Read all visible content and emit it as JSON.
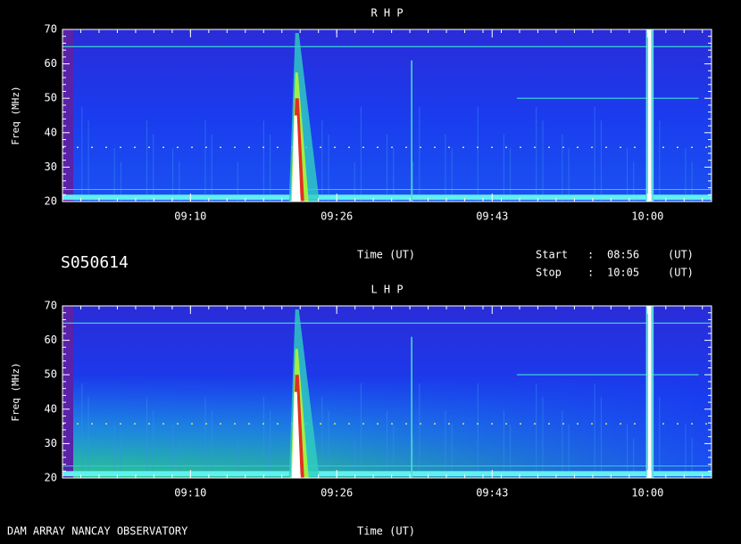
{
  "chart_data": [
    {
      "type": "spectrogram",
      "title": "R H P",
      "x_label": "Time (UT)",
      "y_label": "Freq (MHz)",
      "xlim": [
        536,
        607
      ],
      "xticks": [
        {
          "value": 550,
          "label": "09:10"
        },
        {
          "value": 566,
          "label": "09:26"
        },
        {
          "value": 583,
          "label": "09:43"
        },
        {
          "value": 600,
          "label": "10:00"
        }
      ],
      "ylim": [
        20,
        70
      ],
      "yticks": [
        20,
        30,
        40,
        50,
        60,
        70
      ],
      "low_band_glow": false
    },
    {
      "type": "spectrogram",
      "title": "L H P",
      "x_label": "Time (UT)",
      "y_label": "Freq (MHz)",
      "xlim": [
        536,
        607
      ],
      "xticks": [
        {
          "value": 550,
          "label": "09:10"
        },
        {
          "value": 566,
          "label": "09:26"
        },
        {
          "value": 583,
          "label": "09:43"
        },
        {
          "value": 600,
          "label": "10:00"
        }
      ],
      "ylim": [
        20,
        70
      ],
      "yticks": [
        20,
        30,
        40,
        50,
        60,
        70
      ],
      "low_band_glow": true
    }
  ],
  "info": {
    "id": "S050614",
    "start_label": "Start",
    "start_sep": ":",
    "start": "08:56",
    "start_unit": "(UT)",
    "stop_label": "Stop",
    "stop_sep": ":",
    "stop": "10:05",
    "stop_unit": "(UT)",
    "footer": "DAM ARRAY  NANCAY OBSERVATORY"
  }
}
